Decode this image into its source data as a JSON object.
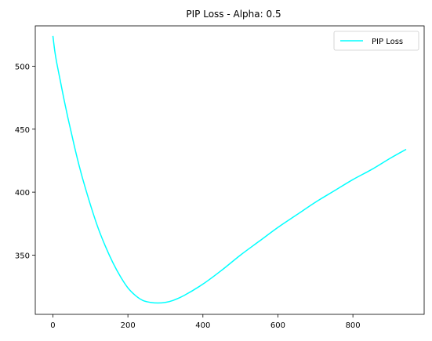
{
  "chart_data": {
    "type": "line",
    "title": "PIP Loss - Alpha: 0.5",
    "xlabel": "",
    "ylabel": "",
    "xlim": [
      -47,
      990
    ],
    "ylim": [
      303,
      532
    ],
    "x_ticks": [
      0,
      200,
      400,
      600,
      800
    ],
    "y_ticks": [
      350,
      400,
      450,
      500
    ],
    "grid": false,
    "legend": {
      "position": "top-right"
    },
    "series": [
      {
        "name": "PIP Loss",
        "color": "#00ffff",
        "points": [
          [
            0,
            524
          ],
          [
            5,
            512
          ],
          [
            10,
            503
          ],
          [
            20,
            488
          ],
          [
            30,
            473
          ],
          [
            40,
            459
          ],
          [
            50,
            446
          ],
          [
            60,
            433
          ],
          [
            70,
            421
          ],
          [
            80,
            410
          ],
          [
            100,
            390
          ],
          [
            120,
            372
          ],
          [
            140,
            357
          ],
          [
            160,
            344
          ],
          [
            180,
            333
          ],
          [
            200,
            324
          ],
          [
            220,
            318
          ],
          [
            240,
            314
          ],
          [
            260,
            312.5
          ],
          [
            280,
            312
          ],
          [
            300,
            312.5
          ],
          [
            320,
            314
          ],
          [
            350,
            318
          ],
          [
            400,
            327
          ],
          [
            450,
            338
          ],
          [
            500,
            350
          ],
          [
            550,
            361
          ],
          [
            600,
            372
          ],
          [
            650,
            382
          ],
          [
            700,
            392
          ],
          [
            750,
            401
          ],
          [
            800,
            410
          ],
          [
            850,
            418
          ],
          [
            900,
            427
          ],
          [
            942,
            434
          ]
        ]
      }
    ]
  }
}
